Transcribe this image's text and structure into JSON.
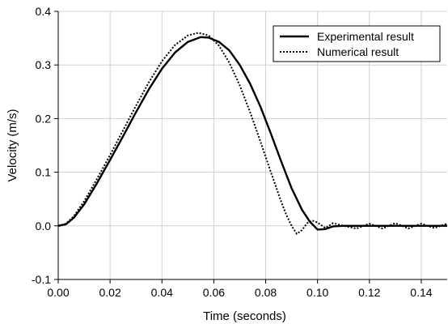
{
  "chart_data": {
    "type": "line",
    "title": "",
    "xlabel": "Time (seconds)",
    "ylabel": "Velocity (m/s)",
    "xlim": [
      0.0,
      0.15
    ],
    "ylim": [
      -0.1,
      0.4
    ],
    "x_ticks": [
      0.0,
      0.02,
      0.04,
      0.06,
      0.08,
      0.1,
      0.12,
      0.14
    ],
    "x_tick_labels": [
      "0.00",
      "0.02",
      "0.04",
      "0.06",
      "0.08",
      "0.10",
      "0.12",
      "0.14"
    ],
    "y_ticks": [
      -0.1,
      0.0,
      0.1,
      0.2,
      0.3,
      0.4
    ],
    "y_tick_labels": [
      "-0.1",
      "0.0",
      "0.1",
      "0.2",
      "0.3",
      "0.4"
    ],
    "grid": true,
    "legend_position": "top-right",
    "series": [
      {
        "name": "Experimental result",
        "style": "solid",
        "color": "#000000",
        "x": [
          0.0,
          0.003,
          0.006,
          0.01,
          0.015,
          0.02,
          0.025,
          0.03,
          0.035,
          0.04,
          0.045,
          0.05,
          0.055,
          0.058,
          0.062,
          0.066,
          0.07,
          0.074,
          0.078,
          0.082,
          0.086,
          0.09,
          0.094,
          0.097,
          0.1,
          0.103,
          0.106,
          0.11,
          0.115,
          0.12,
          0.125,
          0.13,
          0.135,
          0.14,
          0.145,
          0.15
        ],
        "y": [
          0.0,
          0.003,
          0.015,
          0.04,
          0.08,
          0.123,
          0.167,
          0.212,
          0.255,
          0.293,
          0.323,
          0.343,
          0.352,
          0.351,
          0.343,
          0.327,
          0.3,
          0.265,
          0.222,
          0.172,
          0.12,
          0.07,
          0.03,
          0.008,
          -0.007,
          -0.006,
          -0.001,
          0.0,
          0.0,
          0.0,
          0.0,
          0.0,
          0.0,
          0.0,
          0.0,
          0.0
        ]
      },
      {
        "name": "Numerical result",
        "style": "dotted",
        "color": "#000000",
        "x": [
          0.0,
          0.003,
          0.006,
          0.01,
          0.015,
          0.02,
          0.025,
          0.03,
          0.035,
          0.04,
          0.045,
          0.05,
          0.054,
          0.058,
          0.062,
          0.066,
          0.07,
          0.074,
          0.078,
          0.082,
          0.086,
          0.088,
          0.09,
          0.092,
          0.094,
          0.096,
          0.098,
          0.1,
          0.103,
          0.106,
          0.11,
          0.115,
          0.12,
          0.125,
          0.13,
          0.135,
          0.14,
          0.145,
          0.15
        ],
        "y": [
          0.0,
          0.004,
          0.018,
          0.046,
          0.088,
          0.132,
          0.178,
          0.224,
          0.268,
          0.307,
          0.337,
          0.355,
          0.36,
          0.355,
          0.336,
          0.304,
          0.262,
          0.212,
          0.157,
          0.1,
          0.045,
          0.02,
          0.0,
          -0.015,
          -0.008,
          0.005,
          0.01,
          0.006,
          -0.004,
          0.005,
          0.0,
          -0.005,
          0.004,
          -0.005,
          0.005,
          -0.005,
          0.004,
          -0.004,
          0.004
        ]
      }
    ]
  }
}
